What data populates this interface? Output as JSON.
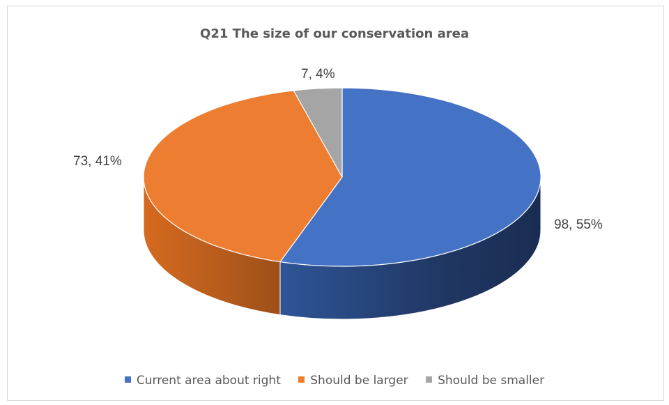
{
  "chart_data": {
    "type": "pie",
    "title": "Q21 The size of our conservation area",
    "categories": [
      "Current area about right",
      "Should be larger",
      "Should be smaller"
    ],
    "values": [
      98,
      73,
      7
    ],
    "percentages": [
      55,
      41,
      4
    ],
    "data_labels": [
      "98, 55%",
      "73, 41%",
      "7, 4%"
    ],
    "colors": [
      "#4472c4",
      "#ed7d31",
      "#a5a5a5"
    ],
    "legend_position": "bottom",
    "style": "3d"
  }
}
